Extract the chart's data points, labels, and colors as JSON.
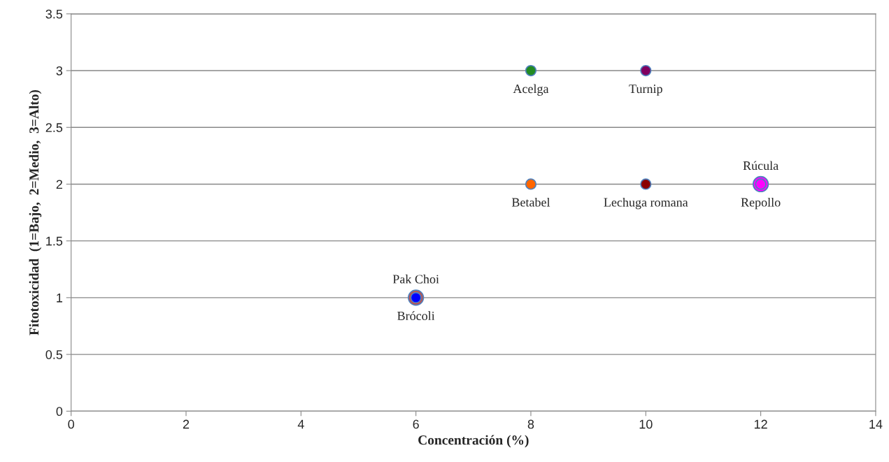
{
  "chart_data": {
    "type": "scatter",
    "xlabel": "Concentración (%)",
    "ylabel": "Fitotoxicidad  (1=Bajo,  2=Medio,  3=Alto)",
    "xlim": [
      0,
      14
    ],
    "xticks": [
      0,
      2,
      4,
      6,
      8,
      10,
      12,
      14
    ],
    "ylim": [
      0,
      3.5
    ],
    "yticks": [
      0,
      0.5,
      1,
      1.5,
      2,
      2.5,
      3,
      3.5
    ],
    "grid": "y",
    "legend": false,
    "marker": "circle",
    "series": [
      {
        "name": "Pak Choi",
        "color": "#c0504d",
        "x": [
          6
        ],
        "values": [
          1
        ]
      },
      {
        "name": "Brócoli",
        "color": "#0000ff",
        "x": [
          6
        ],
        "values": [
          1
        ]
      },
      {
        "name": "Acelga",
        "color": "#228b22",
        "x": [
          8
        ],
        "values": [
          3
        ]
      },
      {
        "name": "Turnip",
        "color": "#800060",
        "x": [
          10
        ],
        "values": [
          3
        ]
      },
      {
        "name": "Betabel",
        "color": "#ff6600",
        "x": [
          8
        ],
        "values": [
          2
        ]
      },
      {
        "name": "Lechuga romana",
        "color": "#8b0000",
        "x": [
          10
        ],
        "values": [
          2
        ]
      },
      {
        "name": "Rúcula",
        "color": "#ff00ff",
        "x": [
          12
        ],
        "values": [
          2
        ]
      },
      {
        "name": "Repollo",
        "color": "#ff00ff",
        "x": [
          12
        ],
        "values": [
          2
        ]
      }
    ]
  }
}
